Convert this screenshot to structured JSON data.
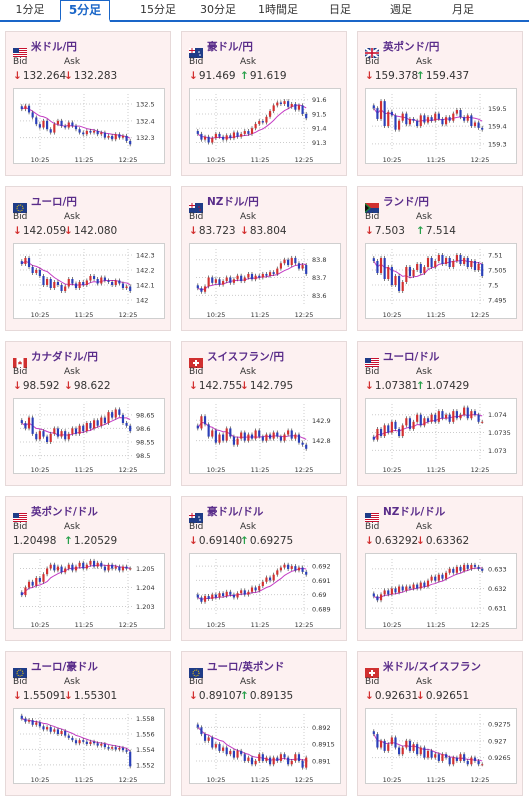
{
  "tabs": [
    {
      "label": "1分足",
      "active": false
    },
    {
      "label": "5分足",
      "active": true
    },
    {
      "label": "15分足",
      "active": false
    },
    {
      "label": "30分足",
      "active": false
    },
    {
      "label": "1時間足",
      "active": false
    },
    {
      "label": "日足",
      "active": false
    },
    {
      "label": "週足",
      "active": false
    },
    {
      "label": "月足",
      "active": false
    }
  ],
  "labels": {
    "bid": "Bid",
    "ask": "Ask"
  },
  "colors": {
    "accent": "#1a66c8",
    "down": "#d23030",
    "up": "#27a04a",
    "candle_up": "#d23030",
    "candle_down": "#2a3fb8",
    "ma": "#c43bc4",
    "title": "#5a2d8a"
  },
  "chart_data": [
    {
      "type": "candlestick",
      "title": "米ドル/円",
      "flag": "us",
      "bid": "132.264",
      "bid_dir": "down",
      "ask": "132.283",
      "ask_dir": "down",
      "x_ticks": [
        "10:25",
        "11:25",
        "12:25"
      ],
      "y_ticks": [
        "132.5",
        "132.4",
        "132.3"
      ],
      "ylim": [
        132.22,
        132.56
      ],
      "values": [
        132.47,
        132.49,
        132.45,
        132.42,
        132.38,
        132.36,
        132.4,
        132.35,
        132.33,
        132.38,
        132.4,
        132.37,
        132.36,
        132.39,
        132.37,
        132.35,
        132.33,
        132.32,
        132.34,
        132.33,
        132.34,
        132.32,
        132.33,
        132.3,
        132.31,
        132.29,
        132.32,
        132.3,
        132.31,
        132.28,
        132.26
      ]
    },
    {
      "type": "candlestick",
      "title": "豪ドル/円",
      "flag": "au",
      "bid": "91.469",
      "bid_dir": "down",
      "ask": "91.619",
      "ask_dir": "up",
      "x_ticks": [
        "10:25",
        "11:25",
        "12:25"
      ],
      "y_ticks": [
        "91.6",
        "91.5",
        "91.4",
        "91.3"
      ],
      "ylim": [
        91.24,
        91.64
      ],
      "values": [
        91.36,
        91.32,
        91.34,
        91.3,
        91.33,
        91.36,
        91.34,
        91.32,
        91.35,
        91.33,
        91.37,
        91.34,
        91.36,
        91.38,
        91.36,
        91.4,
        91.43,
        91.45,
        91.44,
        91.48,
        91.52,
        91.56,
        91.58,
        91.57,
        91.59,
        91.55,
        91.57,
        91.53,
        91.56,
        91.5,
        91.47
      ]
    },
    {
      "type": "candlestick",
      "title": "英ポンド/円",
      "flag": "gb",
      "bid": "159.378",
      "bid_dir": "down",
      "ask": "159.437",
      "ask_dir": "up",
      "x_ticks": [
        "10:25",
        "11:25",
        "12:25"
      ],
      "y_ticks": [
        "159.5",
        "159.4",
        "159.3"
      ],
      "ylim": [
        159.26,
        159.58
      ],
      "values": [
        159.5,
        159.44,
        159.54,
        159.4,
        159.48,
        159.46,
        159.38,
        159.43,
        159.47,
        159.41,
        159.44,
        159.43,
        159.4,
        159.46,
        159.42,
        159.45,
        159.43,
        159.47,
        159.44,
        159.41,
        159.45,
        159.43,
        159.47,
        159.49,
        159.45,
        159.43,
        159.46,
        159.4,
        159.42,
        159.39,
        159.38
      ]
    },
    {
      "type": "candlestick",
      "title": "ユーロ/円",
      "flag": "eu",
      "bid": "142.059",
      "bid_dir": "down",
      "ask": "142.080",
      "ask_dir": "down",
      "x_ticks": [
        "10:25",
        "11:25",
        "12:25"
      ],
      "y_ticks": [
        "142.3",
        "142.2",
        "142.1",
        "142"
      ],
      "ylim": [
        141.96,
        142.34
      ],
      "values": [
        142.24,
        142.28,
        142.22,
        142.18,
        142.2,
        142.16,
        142.1,
        142.14,
        142.08,
        142.12,
        142.1,
        142.06,
        142.09,
        142.14,
        142.11,
        142.08,
        142.12,
        142.1,
        142.13,
        142.16,
        142.14,
        142.11,
        142.15,
        142.13,
        142.12,
        142.1,
        142.13,
        142.11,
        142.08,
        142.09,
        142.06
      ]
    },
    {
      "type": "candlestick",
      "title": "NZドル/円",
      "flag": "nz",
      "bid": "83.723",
      "bid_dir": "down",
      "ask": "83.804",
      "ask_dir": "down",
      "x_ticks": [
        "10:25",
        "11:25",
        "12:25"
      ],
      "y_ticks": [
        "83.8",
        "83.7",
        "83.6"
      ],
      "ylim": [
        83.54,
        83.86
      ],
      "values": [
        83.64,
        83.62,
        83.65,
        83.7,
        83.67,
        83.69,
        83.66,
        83.68,
        83.7,
        83.67,
        83.69,
        83.71,
        83.68,
        83.7,
        83.72,
        83.69,
        83.71,
        83.7,
        83.72,
        83.71,
        83.73,
        83.72,
        83.75,
        83.78,
        83.8,
        83.77,
        83.81,
        83.78,
        83.75,
        83.77,
        83.72
      ]
    },
    {
      "type": "candlestick",
      "title": "ランド/円",
      "flag": "za",
      "bid": "7.503",
      "bid_dir": "down",
      "ask": "7.514",
      "ask_dir": "up",
      "x_ticks": [
        "10:25",
        "11:25",
        "12:25"
      ],
      "y_ticks": [
        "7.51",
        "7.505",
        "7.5",
        "7.495"
      ],
      "ylim": [
        7.493,
        7.512
      ],
      "values": [
        7.508,
        7.504,
        7.509,
        7.502,
        7.506,
        7.5,
        7.503,
        7.498,
        7.501,
        7.506,
        7.503,
        7.505,
        7.507,
        7.504,
        7.506,
        7.509,
        7.506,
        7.508,
        7.51,
        7.507,
        7.509,
        7.506,
        7.508,
        7.51,
        7.507,
        7.509,
        7.506,
        7.508,
        7.505,
        7.507,
        7.503
      ]
    },
    {
      "type": "candlestick",
      "title": "カナダドル/円",
      "flag": "ca",
      "bid": "98.592",
      "bid_dir": "down",
      "ask": "98.622",
      "ask_dir": "down",
      "x_ticks": [
        "10:25",
        "11:25",
        "12:25"
      ],
      "y_ticks": [
        "98.65",
        "98.6",
        "98.55",
        "98.5"
      ],
      "ylim": [
        98.48,
        98.69
      ],
      "values": [
        98.62,
        98.6,
        98.64,
        98.58,
        98.56,
        98.59,
        98.57,
        98.55,
        98.58,
        98.6,
        98.57,
        98.59,
        98.56,
        98.58,
        98.6,
        98.58,
        98.61,
        98.59,
        98.62,
        98.6,
        98.63,
        98.61,
        98.64,
        98.62,
        98.66,
        98.64,
        98.67,
        98.65,
        98.62,
        98.61,
        98.59
      ]
    },
    {
      "type": "candlestick",
      "title": "スイスフラン/円",
      "flag": "ch",
      "bid": "142.755",
      "bid_dir": "down",
      "ask": "142.795",
      "ask_dir": "down",
      "x_ticks": [
        "10:25",
        "11:25",
        "12:25"
      ],
      "y_ticks": [
        "142.9",
        "142.8"
      ],
      "ylim": [
        142.7,
        142.98
      ],
      "values": [
        142.86,
        142.92,
        142.88,
        142.82,
        142.85,
        142.79,
        142.83,
        142.8,
        142.86,
        142.82,
        142.78,
        142.81,
        142.84,
        142.8,
        142.83,
        142.81,
        142.85,
        142.82,
        142.8,
        142.83,
        142.81,
        142.84,
        142.82,
        142.8,
        142.83,
        142.85,
        142.81,
        142.83,
        142.79,
        142.78,
        142.76
      ]
    },
    {
      "type": "candlestick",
      "title": "ユーロ/ドル",
      "flag": "us",
      "bid": "1.07381",
      "bid_dir": "down",
      "ask": "1.07429",
      "ask_dir": "up",
      "x_ticks": [
        "10:25",
        "11:25",
        "12:25"
      ],
      "y_ticks": [
        "1.074",
        "1.0735",
        "1.073"
      ],
      "ylim": [
        1.0727,
        1.0743
      ],
      "values": [
        1.0733,
        1.0736,
        1.0734,
        1.0737,
        1.0735,
        1.0738,
        1.0736,
        1.0734,
        1.0737,
        1.0739,
        1.0736,
        1.0738,
        1.074,
        1.0737,
        1.0739,
        1.0738,
        1.074,
        1.0738,
        1.0741,
        1.0739,
        1.074,
        1.0738,
        1.0741,
        1.0739,
        1.074,
        1.0742,
        1.0739,
        1.0741,
        1.074,
        1.0738,
        1.0738
      ]
    },
    {
      "type": "candlestick",
      "title": "英ポンド/ドル",
      "flag": "us",
      "bid": "1.20498",
      "bid_dir": "",
      "ask": "1.20529",
      "ask_dir": "up",
      "x_ticks": [
        "10:25",
        "11:25",
        "12:25"
      ],
      "y_ticks": [
        "1.205",
        "1.204",
        "1.203"
      ],
      "ylim": [
        1.2025,
        1.2055
      ],
      "values": [
        1.2036,
        1.204,
        1.2043,
        1.2041,
        1.2045,
        1.2043,
        1.2047,
        1.205,
        1.2052,
        1.2049,
        1.2051,
        1.2048,
        1.205,
        1.2052,
        1.2049,
        1.2051,
        1.2053,
        1.205,
        1.2052,
        1.2054,
        1.2051,
        1.2053,
        1.2051,
        1.2049,
        1.2052,
        1.205,
        1.2051,
        1.2049,
        1.2051,
        1.205,
        1.205
      ]
    },
    {
      "type": "candlestick",
      "title": "豪ドル/ドル",
      "flag": "au",
      "bid": "0.69140",
      "bid_dir": "down",
      "ask": "0.69275",
      "ask_dir": "up",
      "x_ticks": [
        "10:25",
        "11:25",
        "12:25"
      ],
      "y_ticks": [
        "0.692",
        "0.691",
        "0.69",
        "0.689"
      ],
      "ylim": [
        0.6885,
        0.6925
      ],
      "values": [
        0.6898,
        0.6895,
        0.6899,
        0.6897,
        0.69,
        0.6898,
        0.6901,
        0.6899,
        0.6902,
        0.69,
        0.6898,
        0.6901,
        0.6903,
        0.69,
        0.6902,
        0.6905,
        0.6903,
        0.6906,
        0.6909,
        0.6912,
        0.691,
        0.6914,
        0.6917,
        0.6919,
        0.6921,
        0.6918,
        0.692,
        0.6917,
        0.6919,
        0.6916,
        0.6914
      ]
    },
    {
      "type": "candlestick",
      "title": "NZドル/ドル",
      "flag": "us",
      "bid": "0.63292",
      "bid_dir": "down",
      "ask": "0.63362",
      "ask_dir": "down",
      "x_ticks": [
        "10:25",
        "11:25",
        "12:25"
      ],
      "y_ticks": [
        "0.633",
        "0.632",
        "0.631"
      ],
      "ylim": [
        0.6306,
        0.6335
      ],
      "values": [
        0.6316,
        0.6314,
        0.6317,
        0.6319,
        0.6317,
        0.632,
        0.6318,
        0.6321,
        0.6319,
        0.6321,
        0.632,
        0.6322,
        0.632,
        0.6323,
        0.6321,
        0.6324,
        0.6326,
        0.6324,
        0.6327,
        0.6325,
        0.6328,
        0.633,
        0.6328,
        0.6331,
        0.6329,
        0.6332,
        0.633,
        0.6332,
        0.6331,
        0.633,
        0.6329
      ]
    },
    {
      "type": "candlestick",
      "title": "ユーロ/豪ドル",
      "flag": "eu",
      "bid": "1.55091",
      "bid_dir": "down",
      "ask": "1.55301",
      "ask_dir": "down",
      "x_ticks": [
        "10:25",
        "11:25",
        "12:25"
      ],
      "y_ticks": [
        "1.558",
        "1.556",
        "1.554",
        "1.552"
      ],
      "ylim": [
        1.5512,
        1.5586
      ],
      "values": [
        1.558,
        1.5576,
        1.5578,
        1.5572,
        1.5575,
        1.557,
        1.5566,
        1.5569,
        1.5563,
        1.5566,
        1.556,
        1.5564,
        1.5558,
        1.5555,
        1.5552,
        1.5548,
        1.5552,
        1.555,
        1.5547,
        1.555,
        1.5548,
        1.5545,
        1.5547,
        1.5543,
        1.5541,
        1.5543,
        1.554,
        1.5542,
        1.5539,
        1.5537,
        1.5518
      ]
    },
    {
      "type": "candlestick",
      "title": "ユーロ/英ポンド",
      "flag": "eu",
      "bid": "0.89107",
      "bid_dir": "down",
      "ask": "0.89135",
      "ask_dir": "up",
      "x_ticks": [
        "10:25",
        "11:25",
        "12:25"
      ],
      "y_ticks": [
        "0.892",
        "0.8915",
        "0.891"
      ],
      "ylim": [
        0.8907,
        0.8924
      ],
      "values": [
        0.892,
        0.8918,
        0.8916,
        0.8917,
        0.8914,
        0.8915,
        0.8913,
        0.8914,
        0.8912,
        0.8913,
        0.8911,
        0.8913,
        0.8912,
        0.891,
        0.8911,
        0.8909,
        0.891,
        0.8912,
        0.891,
        0.8911,
        0.8909,
        0.8911,
        0.891,
        0.8912,
        0.8911,
        0.8909,
        0.891,
        0.8912,
        0.891,
        0.8908,
        0.8911
      ]
    },
    {
      "type": "candlestick",
      "title": "米ドル/スイスフラン",
      "flag": "ch",
      "bid": "0.92631",
      "bid_dir": "down",
      "ask": "0.92651",
      "ask_dir": "down",
      "x_ticks": [
        "10:25",
        "11:25",
        "12:25"
      ],
      "y_ticks": [
        "0.9275",
        "0.927",
        "0.9265"
      ],
      "ylim": [
        0.9261,
        0.9278
      ],
      "values": [
        0.9272,
        0.9268,
        0.927,
        0.9267,
        0.9269,
        0.9271,
        0.9268,
        0.9266,
        0.9268,
        0.927,
        0.9267,
        0.9269,
        0.9266,
        0.9268,
        0.9265,
        0.9267,
        0.9265,
        0.9266,
        0.9264,
        0.9266,
        0.9265,
        0.9263,
        0.9265,
        0.9264,
        0.9266,
        0.9264,
        0.9263,
        0.9265,
        0.9264,
        0.9263,
        0.9263
      ]
    }
  ]
}
